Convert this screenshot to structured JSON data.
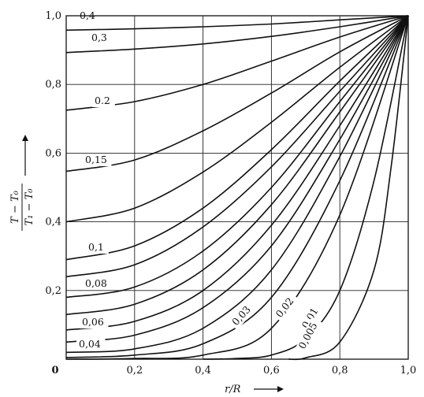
{
  "chart_data": {
    "type": "line",
    "title": "",
    "xlabel": "r/R",
    "ylabel_numerator": "T − T₀",
    "ylabel_denominator": "T₁ − T₀",
    "xlim": [
      0,
      1.0
    ],
    "ylim": [
      0,
      1.0
    ],
    "grid": true,
    "x_ticks": [
      {
        "value": 0,
        "label": "0"
      },
      {
        "value": 0.2,
        "label": "0,2"
      },
      {
        "value": 0.4,
        "label": "0,4"
      },
      {
        "value": 0.6,
        "label": "0,6"
      },
      {
        "value": 0.8,
        "label": "0,8"
      },
      {
        "value": 1.0,
        "label": "1,0"
      }
    ],
    "y_ticks": [
      {
        "value": 0.2,
        "label": "0,2"
      },
      {
        "value": 0.4,
        "label": "0,4"
      },
      {
        "value": 0.6,
        "label": "0,6"
      },
      {
        "value": 0.8,
        "label": "0,8"
      },
      {
        "value": 1.0,
        "label": "1,0"
      }
    ],
    "series": [
      {
        "name": "0,4",
        "points": [
          [
            0,
            0.958
          ],
          [
            0.2,
            0.962
          ],
          [
            0.4,
            0.968
          ],
          [
            0.6,
            0.976
          ],
          [
            0.8,
            0.988
          ],
          [
            1.0,
            1.0
          ]
        ]
      },
      {
        "name": "0,3",
        "points": [
          [
            0,
            0.893
          ],
          [
            0.2,
            0.903
          ],
          [
            0.4,
            0.918
          ],
          [
            0.6,
            0.94
          ],
          [
            0.8,
            0.968
          ],
          [
            1.0,
            1.0
          ]
        ]
      },
      {
        "name": "0.2",
        "points": [
          [
            0,
            0.725
          ],
          [
            0.2,
            0.75
          ],
          [
            0.4,
            0.8
          ],
          [
            0.6,
            0.868
          ],
          [
            0.8,
            0.938
          ],
          [
            1.0,
            1.0
          ]
        ]
      },
      {
        "name": "0,15",
        "points": [
          [
            0,
            0.547
          ],
          [
            0.2,
            0.58
          ],
          [
            0.4,
            0.665
          ],
          [
            0.6,
            0.775
          ],
          [
            0.8,
            0.895
          ],
          [
            1.0,
            1.0
          ]
        ]
      },
      {
        "name": "",
        "points": [
          [
            0,
            0.4
          ],
          [
            0.2,
            0.44
          ],
          [
            0.4,
            0.545
          ],
          [
            0.6,
            0.69
          ],
          [
            0.8,
            0.85
          ],
          [
            1.0,
            1.0
          ]
        ]
      },
      {
        "name": "0,1",
        "points": [
          [
            0,
            0.29
          ],
          [
            0.2,
            0.33
          ],
          [
            0.4,
            0.44
          ],
          [
            0.6,
            0.61
          ],
          [
            0.8,
            0.81
          ],
          [
            1.0,
            1.0
          ]
        ]
      },
      {
        "name": "",
        "points": [
          [
            0,
            0.24
          ],
          [
            0.2,
            0.275
          ],
          [
            0.4,
            0.385
          ],
          [
            0.6,
            0.56
          ],
          [
            0.8,
            0.78
          ],
          [
            1.0,
            1.0
          ]
        ]
      },
      {
        "name": "0,08",
        "points": [
          [
            0,
            0.18
          ],
          [
            0.2,
            0.21
          ],
          [
            0.4,
            0.315
          ],
          [
            0.6,
            0.5
          ],
          [
            0.8,
            0.75
          ],
          [
            1.0,
            1.0
          ]
        ]
      },
      {
        "name": "",
        "points": [
          [
            0,
            0.13
          ],
          [
            0.2,
            0.16
          ],
          [
            0.4,
            0.26
          ],
          [
            0.6,
            0.45
          ],
          [
            0.8,
            0.72
          ],
          [
            1.0,
            1.0
          ]
        ]
      },
      {
        "name": "0,06",
        "points": [
          [
            0,
            0.085
          ],
          [
            0.2,
            0.11
          ],
          [
            0.4,
            0.2
          ],
          [
            0.6,
            0.39
          ],
          [
            0.8,
            0.68
          ],
          [
            1.0,
            1.0
          ]
        ]
      },
      {
        "name": "",
        "points": [
          [
            0,
            0.05
          ],
          [
            0.2,
            0.07
          ],
          [
            0.4,
            0.15
          ],
          [
            0.6,
            0.33
          ],
          [
            0.8,
            0.64
          ],
          [
            1.0,
            1.0
          ]
        ]
      },
      {
        "name": "0,04",
        "points": [
          [
            0,
            0.02
          ],
          [
            0.2,
            0.03
          ],
          [
            0.4,
            0.09
          ],
          [
            0.6,
            0.26
          ],
          [
            0.8,
            0.59
          ],
          [
            1.0,
            1.0
          ]
        ]
      },
      {
        "name": "0,03",
        "points": [
          [
            0,
            0.005
          ],
          [
            0.2,
            0.012
          ],
          [
            0.4,
            0.045
          ],
          [
            0.6,
            0.18
          ],
          [
            0.8,
            0.52
          ],
          [
            1.0,
            1.0
          ]
        ]
      },
      {
        "name": "0,02",
        "points": [
          [
            0,
            0.0
          ],
          [
            0.2,
            0.002
          ],
          [
            0.4,
            0.012
          ],
          [
            0.6,
            0.09
          ],
          [
            0.8,
            0.42
          ],
          [
            1.0,
            1.0
          ]
        ]
      },
      {
        "name": "0,01",
        "points": [
          [
            0.4,
            0.0
          ],
          [
            0.5,
            0.002
          ],
          [
            0.6,
            0.012
          ],
          [
            0.7,
            0.06
          ],
          [
            0.8,
            0.2
          ],
          [
            0.9,
            0.52
          ],
          [
            1.0,
            1.0
          ]
        ]
      },
      {
        "name": "0,005",
        "points": [
          [
            0.65,
            0.0
          ],
          [
            0.7,
            0.004
          ],
          [
            0.8,
            0.05
          ],
          [
            0.9,
            0.26
          ],
          [
            0.95,
            0.56
          ],
          [
            1.0,
            1.0
          ]
        ]
      }
    ]
  }
}
